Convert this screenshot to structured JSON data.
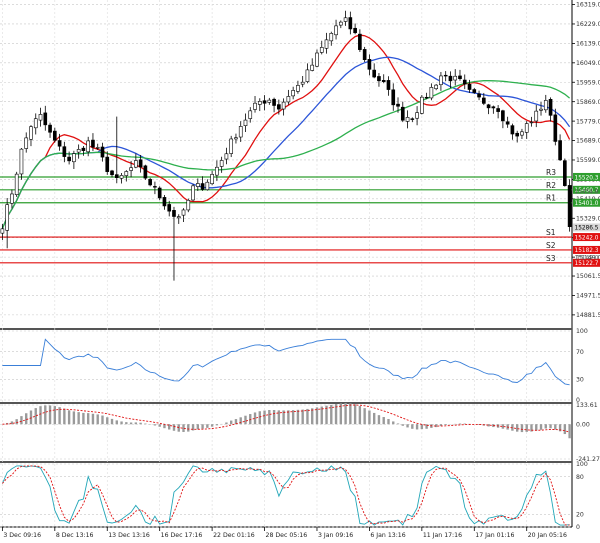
{
  "chart_data": {
    "type": "candlestick",
    "main": {
      "y_ticks": [
        "16319.0",
        "16229.0",
        "16139.0",
        "16049.0",
        "15959.0",
        "15869.0",
        "15779.0",
        "15689.0",
        "15599.0",
        "15509.0",
        "15419.0",
        "15329.0",
        "15239.0",
        "15149.0",
        "15061.5",
        "14971.5",
        "14881.5"
      ],
      "y_tick_values": [
        16319.0,
        16229.0,
        16139.0,
        16049.0,
        15959.0,
        15869.0,
        15779.0,
        15689.0,
        15599.0,
        15509.0,
        15419.0,
        15329.0,
        15239.0,
        15149.0,
        15061.5,
        14971.5,
        14881.5
      ],
      "ylim": [
        14830,
        16340
      ],
      "x_labels": [
        "3 Dec 09:16",
        "8 Dec 13:16",
        "13 Dec 13:16",
        "16 Dec 17:16",
        "22 Dec 01:16",
        "28 Dec 05:16",
        "3 Jan 09:16",
        "6 Jan 13:16",
        "11 Jan 17:16",
        "17 Jan 01:16",
        "20 Jan 05:16"
      ],
      "x_label_positions": [
        0,
        11,
        22,
        33,
        44,
        55,
        66,
        77,
        88,
        99,
        110
      ],
      "n_bars": 120,
      "levels": [
        {
          "name": "R3",
          "value": 15520.3,
          "label": "15520.3",
          "color": "#2e9e2e"
        },
        {
          "name": "R2",
          "value": 15460.7,
          "label": "15460.7",
          "color": "#2e9e2e"
        },
        {
          "name": "R1",
          "value": 15401.0,
          "label": "15401.0",
          "color": "#2e9e2e"
        },
        {
          "name": "S1",
          "value": 15242.0,
          "label": "15242.0",
          "color": "#e01010"
        },
        {
          "name": "S2",
          "value": 15182.3,
          "label": "15182.3",
          "color": "#e01010"
        },
        {
          "name": "S3",
          "value": 15122.7,
          "label": "15122.7",
          "color": "#e01010"
        }
      ],
      "extra_price_labels": [
        {
          "value": 15286.5,
          "label": "15286.5",
          "color": "#d8d8d8",
          "text_color": "#000000"
        },
        {
          "value": 15454.8,
          "label": "15454.8",
          "color": "none",
          "text_color": "#555555"
        },
        {
          "value": 15149.0,
          "label": "15149.0",
          "color": "none",
          "text_color": "#555555"
        }
      ],
      "anchors": [
        [
          0,
          15300
        ],
        [
          2,
          15450
        ],
        [
          4,
          15640
        ],
        [
          6,
          15760
        ],
        [
          8,
          15800
        ],
        [
          10,
          15720
        ],
        [
          12,
          15650
        ],
        [
          14,
          15600
        ],
        [
          16,
          15640
        ],
        [
          18,
          15680
        ],
        [
          20,
          15640
        ],
        [
          22,
          15560
        ],
        [
          24,
          15500
        ],
        [
          26,
          15540
        ],
        [
          28,
          15580
        ],
        [
          30,
          15520
        ],
        [
          32,
          15460
        ],
        [
          34,
          15400
        ],
        [
          36,
          15340
        ],
        [
          38,
          15350
        ],
        [
          40,
          15470
        ],
        [
          42,
          15480
        ],
        [
          44,
          15530
        ],
        [
          46,
          15600
        ],
        [
          48,
          15680
        ],
        [
          50,
          15760
        ],
        [
          52,
          15820
        ],
        [
          54,
          15870
        ],
        [
          56,
          15880
        ],
        [
          58,
          15840
        ],
        [
          60,
          15900
        ],
        [
          62,
          15940
        ],
        [
          64,
          16000
        ],
        [
          66,
          16080
        ],
        [
          68,
          16150
        ],
        [
          70,
          16220
        ],
        [
          72,
          16240
        ],
        [
          74,
          16180
        ],
        [
          76,
          16060
        ],
        [
          78,
          15990
        ],
        [
          80,
          15950
        ],
        [
          82,
          15870
        ],
        [
          84,
          15800
        ],
        [
          86,
          15800
        ],
        [
          88,
          15870
        ],
        [
          90,
          15930
        ],
        [
          92,
          15990
        ],
        [
          94,
          15980
        ],
        [
          96,
          15960
        ],
        [
          98,
          15910
        ],
        [
          100,
          15880
        ],
        [
          102,
          15860
        ],
        [
          104,
          15840
        ],
        [
          106,
          15760
        ],
        [
          108,
          15700
        ],
        [
          110,
          15760
        ],
        [
          112,
          15810
        ],
        [
          114,
          15880
        ],
        [
          116,
          15700
        ],
        [
          118,
          15500
        ],
        [
          119,
          15290
        ]
      ],
      "spikes": [
        [
          36,
          15040
        ],
        [
          1,
          15190
        ],
        [
          24,
          15800
        ]
      ],
      "moving_averages": [
        {
          "name": "fast",
          "color": "#e01010",
          "period": 10
        },
        {
          "name": "mid",
          "color": "#2c55d8",
          "period": 21
        },
        {
          "name": "slow",
          "color": "#2eb04e",
          "period": 50
        }
      ]
    },
    "rsi": {
      "y_ticks": [
        "100",
        "70",
        "30",
        "0"
      ],
      "y_tick_values": [
        100,
        70,
        30,
        0
      ],
      "color": "#3a7fd8"
    },
    "macd": {
      "y_ticks": [
        "133.61",
        "0.00",
        "-241.27"
      ],
      "y_tick_values": [
        133.61,
        0.0,
        -241.27
      ],
      "signal_color": "#e01010",
      "hist_color": "#9a9a9a"
    },
    "stochastic": {
      "y_ticks": [
        "100",
        "80",
        "20",
        "0"
      ],
      "y_tick_values": [
        100,
        80,
        20,
        0
      ],
      "k_color": "#22a6b8",
      "d_color": "#e01010"
    }
  }
}
